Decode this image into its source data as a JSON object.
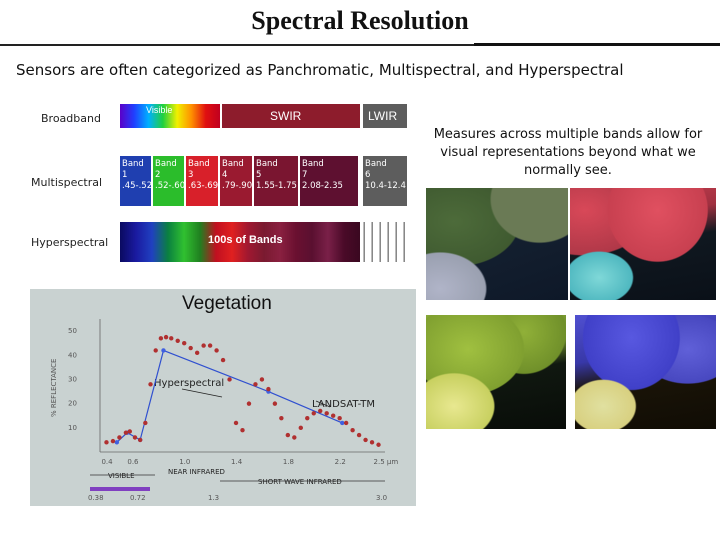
{
  "title": "Spectral Resolution",
  "subtitle": "Sensors are often categorized as Panchromatic, Multispectral, and Hyperspectral",
  "note": "Measures across multiple bands allow for visual representations beyond what we normally see.",
  "diagram": {
    "row_labels": {
      "broadband": "Broadband",
      "multispectral": "Multispectral",
      "hyperspectral": "Hyperspectral"
    },
    "broadband": {
      "visible": "Visible",
      "swir": "SWIR",
      "lwir": "LWIR"
    },
    "bands": [
      {
        "name": "Band",
        "num": "1",
        "range": ".45-.52",
        "color": "#1f3fb0"
      },
      {
        "name": "Band",
        "num": "2",
        "range": ".52-.60",
        "color": "#2bbd2b"
      },
      {
        "name": "Band",
        "num": "3",
        "range": ".63-.69",
        "color": "#d8202a"
      },
      {
        "name": "Band",
        "num": "4",
        "range": ".79-.90",
        "color": "#9a1a30"
      },
      {
        "name": "Band",
        "num": "5",
        "range": "1.55-1.75",
        "color": "#7a1530"
      },
      {
        "name": "Band",
        "num": "7",
        "range": "2.08-2.35",
        "color": "#5e1030"
      },
      {
        "name": "Band",
        "num": "6",
        "range": "10.4-12.4",
        "color": "#5d5d5d"
      }
    ],
    "hyper_label": "100s of Bands"
  },
  "chart_data": {
    "type": "line",
    "title": "Vegetation",
    "ylabel": "% REFLECTANCE",
    "xlabel": "SHORT WAVE INFRARED",
    "x_ticks": [
      "0.4",
      "0.6",
      "1.0",
      "1.4",
      "1.8",
      "2.2",
      "2.5 μm"
    ],
    "y_ticks": [
      "10",
      "20",
      "30",
      "40",
      "50"
    ],
    "region_labels": {
      "visible": "VISIBLE",
      "near_ir": "NEAR INFRARED",
      "swir": "SHORT WAVE INFRARED"
    },
    "bottom_ticks": [
      "0.38",
      "0.72",
      "1.3",
      "3.0"
    ],
    "ylim": [
      0,
      55
    ],
    "xlim": [
      0.35,
      2.55
    ],
    "series": [
      {
        "name": "Hyperspectral",
        "x": [
          0.4,
          0.45,
          0.5,
          0.55,
          0.58,
          0.62,
          0.66,
          0.7,
          0.74,
          0.78,
          0.82,
          0.86,
          0.9,
          0.95,
          1.0,
          1.05,
          1.1,
          1.15,
          1.2,
          1.25,
          1.3,
          1.35,
          1.4,
          1.45,
          1.5,
          1.55,
          1.6,
          1.65,
          1.7,
          1.75,
          1.8,
          1.85,
          1.9,
          1.95,
          2.0,
          2.05,
          2.1,
          2.15,
          2.2,
          2.25,
          2.3,
          2.35,
          2.4,
          2.45,
          2.5
        ],
        "y": [
          4,
          4.5,
          6,
          8,
          8.5,
          6,
          5,
          12,
          28,
          42,
          47,
          47.5,
          47,
          46,
          45,
          43,
          41,
          44,
          44,
          42,
          38,
          30,
          12,
          9,
          20,
          28,
          30,
          26,
          20,
          14,
          7,
          6,
          10,
          14,
          16,
          17,
          16,
          15,
          14,
          12,
          9,
          7,
          5,
          4,
          3
        ]
      },
      {
        "name": "LANDSAT-TM",
        "x": [
          0.48,
          0.56,
          0.66,
          0.84,
          1.65,
          2.22
        ],
        "y": [
          4,
          8,
          5,
          42,
          25,
          12
        ]
      }
    ]
  }
}
